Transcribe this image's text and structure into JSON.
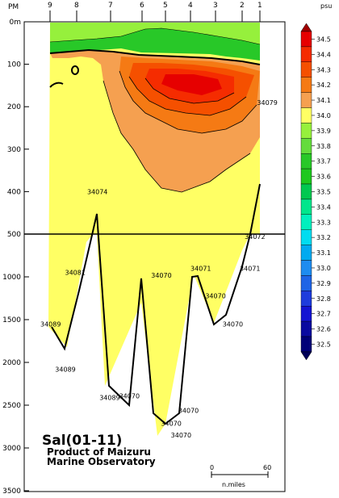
{
  "chart_data": {
    "type": "heatmap",
    "title": "Sal(01-11)",
    "subtitle_lines": [
      "Product of Maizuru",
      "Marine Observatory"
    ],
    "x_axis": {
      "unit_label": "PM",
      "stations": [
        "9",
        "8",
        "7",
        "6",
        "5",
        "4",
        "3",
        "2",
        "1"
      ]
    },
    "y_axis": {
      "ticks": [
        "0m",
        "100",
        "200",
        "300",
        "400",
        "500",
        "1000",
        "1500",
        "2000",
        "2500",
        "3000",
        "3500"
      ],
      "upper_range": [
        0,
        500
      ],
      "lower_range": [
        500,
        3500
      ],
      "split_depth": 500
    },
    "colorbar": {
      "unit": "psu",
      "levels": [
        {
          "value": "34.5",
          "color": "#e60000"
        },
        {
          "value": "34.4",
          "color": "#f52c00"
        },
        {
          "value": "34.3",
          "color": "#f55000"
        },
        {
          "value": "34.2",
          "color": "#f57a14"
        },
        {
          "value": "34.1",
          "color": "#f5a050"
        },
        {
          "value": "34.0",
          "color": "#ffff64"
        },
        {
          "value": "33.9",
          "color": "#96f03c"
        },
        {
          "value": "33.8",
          "color": "#64dc3c"
        },
        {
          "value": "33.7",
          "color": "#28c828"
        },
        {
          "value": "33.6",
          "color": "#1ec81e"
        },
        {
          "value": "33.5",
          "color": "#00c850"
        },
        {
          "value": "33.4",
          "color": "#00e68c"
        },
        {
          "value": "33.3",
          "color": "#00f0be"
        },
        {
          "value": "33.2",
          "color": "#00dcf0"
        },
        {
          "value": "33.1",
          "color": "#00aaf0"
        },
        {
          "value": "33.0",
          "color": "#1e8cf0"
        },
        {
          "value": "32.9",
          "color": "#1e64e6"
        },
        {
          "value": "32.8",
          "color": "#1e3cdc"
        },
        {
          "value": "32.7",
          "color": "#1414d2"
        },
        {
          "value": "32.6",
          "color": "#0a0aa0"
        },
        {
          "value": "32.5",
          "color": "#000078"
        }
      ],
      "top_cap_color": "#a00000",
      "bottom_cap_color": "#00005a"
    },
    "bottom_labels": [
      {
        "text": "34089",
        "x": 1.0,
        "depth": 1550
      },
      {
        "text": "34089",
        "x": 1.6,
        "depth": 2080
      },
      {
        "text": "34081",
        "x": 2.0,
        "depth": 950
      },
      {
        "text": "34074",
        "x": 2.9,
        "depth": 400
      },
      {
        "text": "34089",
        "x": 3.4,
        "depth": 2410
      },
      {
        "text": "34070",
        "x": 4.2,
        "depth": 2390
      },
      {
        "text": "34070",
        "x": 5.5,
        "depth": 980
      },
      {
        "text": "34070",
        "x": 5.9,
        "depth": 2710
      },
      {
        "text": "34070",
        "x": 6.3,
        "depth": 2850
      },
      {
        "text": "34070",
        "x": 6.6,
        "depth": 2560
      },
      {
        "text": "34071",
        "x": 7.1,
        "depth": 900
      },
      {
        "text": "34070",
        "x": 7.7,
        "depth": 1220
      },
      {
        "text": "34070",
        "x": 8.4,
        "depth": 1550
      },
      {
        "text": "34071",
        "x": 9.1,
        "depth": 900
      },
      {
        "text": "34072",
        "x": 9.3,
        "depth": 530
      },
      {
        "text": "34079",
        "x": 9.8,
        "depth": 190
      }
    ],
    "scale_bar": {
      "start": "0",
      "end": "60",
      "unit": "n.miles"
    }
  }
}
